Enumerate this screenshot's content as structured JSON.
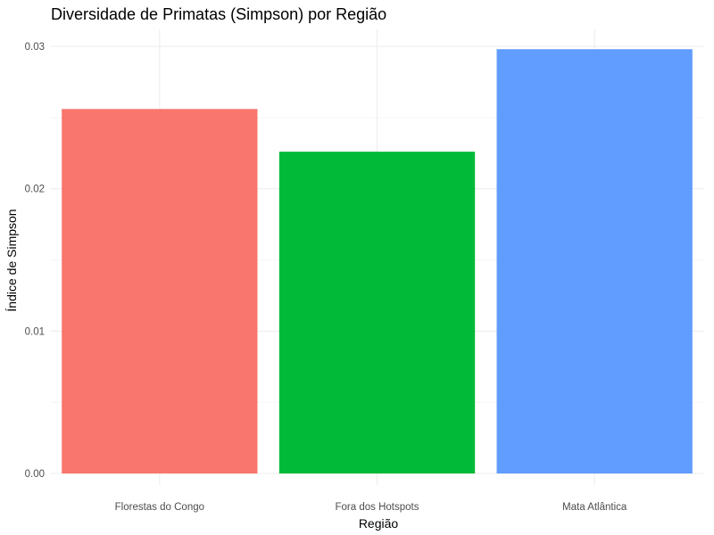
{
  "chart_data": {
    "type": "bar",
    "title": "Diversidade de Primatas (Simpson) por Região",
    "xlabel": "Região",
    "ylabel": "Índice de Simpson",
    "categories": [
      "Florestas do Congo",
      "Fora dos Hotspots",
      "Mata Atlântica"
    ],
    "values": [
      0.0256,
      0.0226,
      0.0298
    ],
    "colors": [
      "#F8766D",
      "#00BA38",
      "#619CFF"
    ],
    "ylim": [
      0,
      0.0298
    ],
    "yticks": [
      0.0,
      0.01,
      0.02,
      0.03
    ],
    "ytick_labels": [
      "0.00",
      "0.01",
      "0.02",
      "0.03"
    ],
    "grid": true,
    "legend": "none"
  }
}
